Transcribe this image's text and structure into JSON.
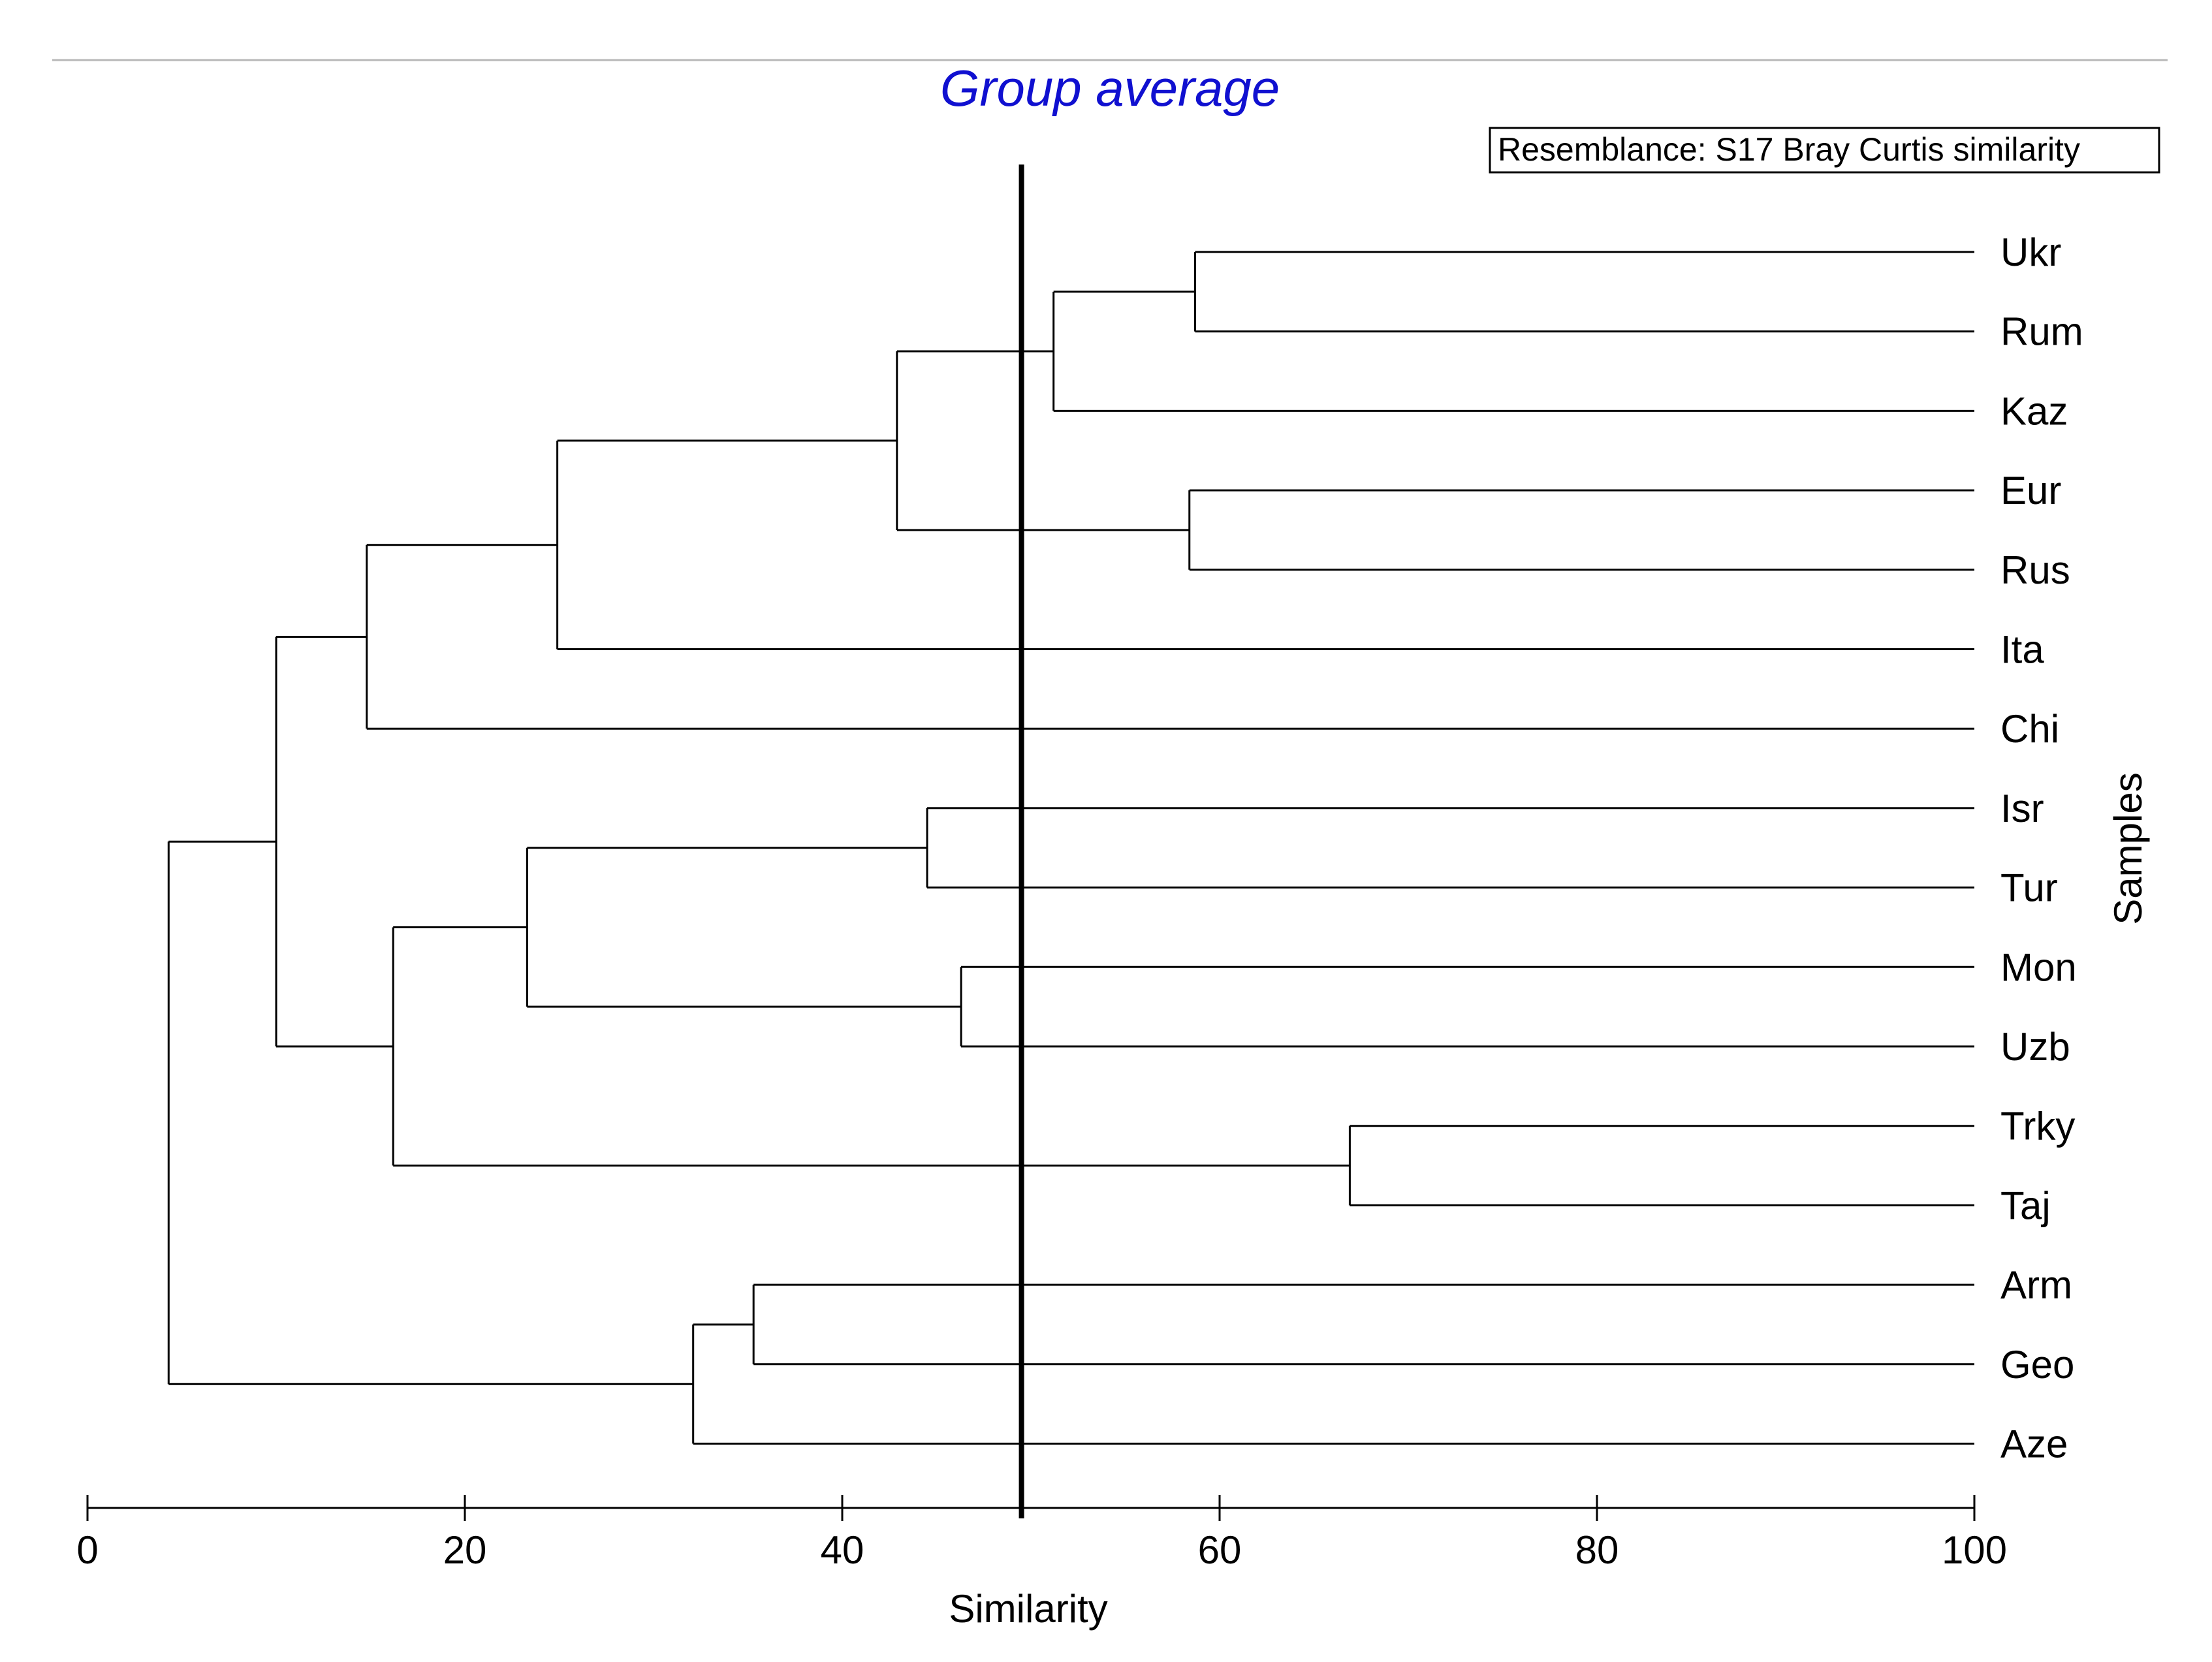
{
  "chart_data": {
    "type": "dendrogram",
    "title": "Group average",
    "legend": "Resemblance: S17 Bray Curtis similarity",
    "xlabel": "Similarity",
    "ylabel": "Samples",
    "xlim": [
      0,
      100
    ],
    "xticks": [
      0,
      20,
      40,
      60,
      80,
      100
    ],
    "cutoff": 49.5,
    "leaves": [
      "Ukr",
      "Rum",
      "Kaz",
      "Eur",
      "Rus",
      "Ita",
      "Chi",
      "Isr",
      "Tur",
      "Mon",
      "Uzb",
      "Trky",
      "Taj",
      "Arm",
      "Geo",
      "Aze"
    ],
    "merges": [
      {
        "id": "n1",
        "children": [
          "Ukr",
          "Rum"
        ],
        "similarity": 58.7
      },
      {
        "id": "n2",
        "children": [
          "n1",
          "Kaz"
        ],
        "similarity": 51.2
      },
      {
        "id": "n3",
        "children": [
          "Eur",
          "Rus"
        ],
        "similarity": 58.4
      },
      {
        "id": "n4",
        "children": [
          "n2",
          "n3"
        ],
        "similarity": 42.9
      },
      {
        "id": "n5",
        "children": [
          "n4",
          "Ita"
        ],
        "similarity": 24.9
      },
      {
        "id": "n6",
        "children": [
          "n5",
          "Chi"
        ],
        "similarity": 14.8
      },
      {
        "id": "n7",
        "children": [
          "Isr",
          "Tur"
        ],
        "similarity": 44.5
      },
      {
        "id": "n8",
        "children": [
          "Mon",
          "Uzb"
        ],
        "similarity": 46.3
      },
      {
        "id": "n9",
        "children": [
          "n7",
          "n8"
        ],
        "similarity": 23.3
      },
      {
        "id": "n10",
        "children": [
          "Trky",
          "Taj"
        ],
        "similarity": 66.9
      },
      {
        "id": "n11",
        "children": [
          "n9",
          "n10"
        ],
        "similarity": 16.2
      },
      {
        "id": "n12",
        "children": [
          "n6",
          "n11"
        ],
        "similarity": 10.0
      },
      {
        "id": "n13",
        "children": [
          "Arm",
          "Geo"
        ],
        "similarity": 35.3
      },
      {
        "id": "n14",
        "children": [
          "n13",
          "Aze"
        ],
        "similarity": 32.1
      },
      {
        "id": "n15",
        "children": [
          "n12",
          "n14"
        ],
        "similarity": 4.3
      }
    ]
  }
}
